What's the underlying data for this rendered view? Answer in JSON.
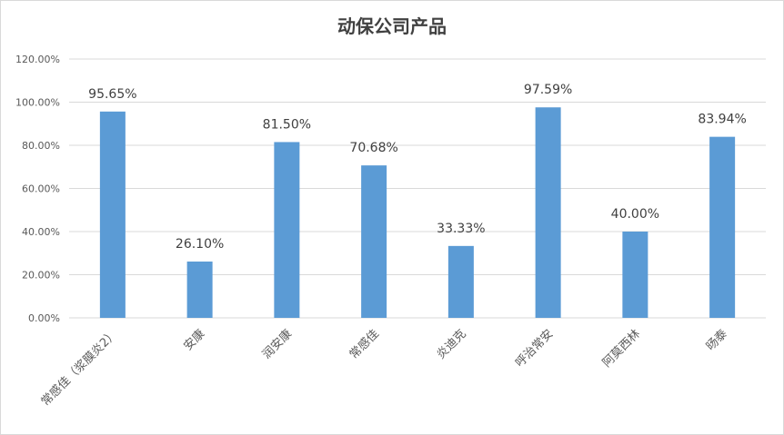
{
  "chart_data": {
    "type": "bar",
    "title": "动保公司产品",
    "categories": [
      "常感佳（浆膜炎2）",
      "安康",
      "润安康",
      "常感佳",
      "炎迪克",
      "呼治常安",
      "阿莫西林",
      "旸泰"
    ],
    "values": [
      95.65,
      26.1,
      81.5,
      70.68,
      33.33,
      97.59,
      40.0,
      83.94
    ],
    "value_labels": [
      "95.65%",
      "26.10%",
      "81.50%",
      "70.68%",
      "33.33%",
      "97.59%",
      "40.00%",
      "83.94%"
    ],
    "yticks": [
      "0.00%",
      "20.00%",
      "40.00%",
      "60.00%",
      "80.00%",
      "100.00%",
      "120.00%"
    ],
    "ylim": [
      0,
      120
    ],
    "xlabel": "",
    "ylabel": "",
    "grid": true,
    "legend": "none",
    "bar_color": "#5b9bd5",
    "grid_color": "#d9d9d9"
  }
}
